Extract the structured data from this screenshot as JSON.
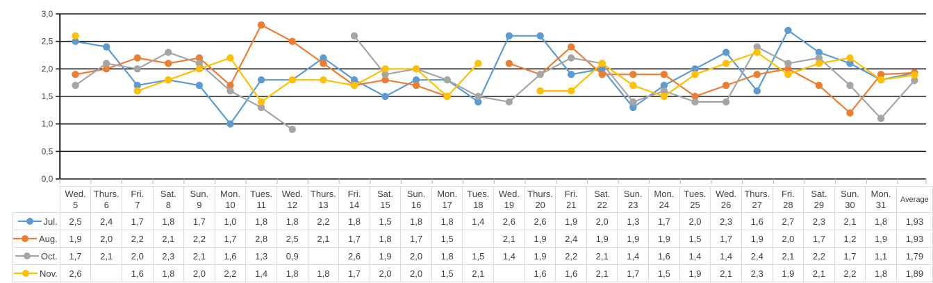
{
  "chart_data": {
    "type": "line",
    "title": "",
    "xlabel": "",
    "ylabel": "",
    "ylim": [
      0.0,
      3.0
    ],
    "ytick_step": 0.5,
    "ytick_labels": [
      "0,0",
      "0,5",
      "1,0",
      "1,5",
      "2,0",
      "2,5",
      "3,0"
    ],
    "decimal_separator": ",",
    "grid": true,
    "legend_position": "table-left",
    "average_label": "Average",
    "categories": [
      {
        "day": "Wed.",
        "date": "5"
      },
      {
        "day": "Thurs.",
        "date": "6"
      },
      {
        "day": "Fri.",
        "date": "7"
      },
      {
        "day": "Sat.",
        "date": "8"
      },
      {
        "day": "Sun.",
        "date": "9"
      },
      {
        "day": "Mon.",
        "date": "10"
      },
      {
        "day": "Tues.",
        "date": "11"
      },
      {
        "day": "Wed.",
        "date": "12"
      },
      {
        "day": "Thurs.",
        "date": "13"
      },
      {
        "day": "Fri.",
        "date": "14"
      },
      {
        "day": "Sat.",
        "date": "15"
      },
      {
        "day": "Sun.",
        "date": "16"
      },
      {
        "day": "Mon.",
        "date": "17"
      },
      {
        "day": "Tues.",
        "date": "18"
      },
      {
        "day": "Wed.",
        "date": "19"
      },
      {
        "day": "Thurs.",
        "date": "20"
      },
      {
        "day": "Fri.",
        "date": "21"
      },
      {
        "day": "Sat.",
        "date": "22"
      },
      {
        "day": "Sun.",
        "date": "23"
      },
      {
        "day": "Mon.",
        "date": "24"
      },
      {
        "day": "Tues.",
        "date": "25"
      },
      {
        "day": "Wed.",
        "date": "26"
      },
      {
        "day": "Thurs.",
        "date": "27"
      },
      {
        "day": "Fri.",
        "date": "28"
      },
      {
        "day": "Sat.",
        "date": "29"
      },
      {
        "day": "Sun.",
        "date": "30"
      },
      {
        "day": "Mon.",
        "date": "31"
      }
    ],
    "series": [
      {
        "name": "Jul.",
        "color": "#5B9BD5",
        "values": [
          2.5,
          2.4,
          1.7,
          1.8,
          1.7,
          1.0,
          1.8,
          1.8,
          2.2,
          1.8,
          1.5,
          1.8,
          1.8,
          1.4,
          2.6,
          2.6,
          1.9,
          2.0,
          1.3,
          1.7,
          2.0,
          2.3,
          1.6,
          2.7,
          2.3,
          2.1,
          1.8
        ],
        "average": 1.93
      },
      {
        "name": "Aug.",
        "color": "#ED7D31",
        "values": [
          1.9,
          2.0,
          2.2,
          2.1,
          2.2,
          1.7,
          2.8,
          2.5,
          2.1,
          1.7,
          1.8,
          1.7,
          1.5,
          null,
          2.1,
          1.9,
          2.4,
          1.9,
          1.9,
          1.9,
          1.5,
          1.7,
          1.9,
          2.0,
          1.7,
          1.2,
          1.9
        ],
        "average": 1.93
      },
      {
        "name": "Oct.",
        "color": "#A5A5A5",
        "values": [
          1.7,
          2.1,
          2.0,
          2.3,
          2.1,
          1.6,
          1.3,
          0.9,
          null,
          2.6,
          1.9,
          2.0,
          1.8,
          1.5,
          1.4,
          1.9,
          2.2,
          2.1,
          1.4,
          1.6,
          1.4,
          1.4,
          2.4,
          2.1,
          2.2,
          1.7,
          1.1
        ],
        "average": 1.79
      },
      {
        "name": "Nov.",
        "color": "#FFC000",
        "values": [
          2.6,
          null,
          1.6,
          1.8,
          2.0,
          2.2,
          1.4,
          1.8,
          1.8,
          1.7,
          2.0,
          2.0,
          1.5,
          2.1,
          null,
          1.6,
          1.6,
          2.1,
          1.7,
          1.5,
          1.9,
          2.1,
          2.3,
          1.9,
          2.1,
          2.2,
          1.8
        ],
        "average": 1.89
      }
    ],
    "style": {
      "gridline_color": "#1a1a1a",
      "axis_color": "#1a1a1a",
      "x_tick_color": "#bfbfbf",
      "text_color": "#404040",
      "table_border_color": "#d9d9d9"
    }
  }
}
